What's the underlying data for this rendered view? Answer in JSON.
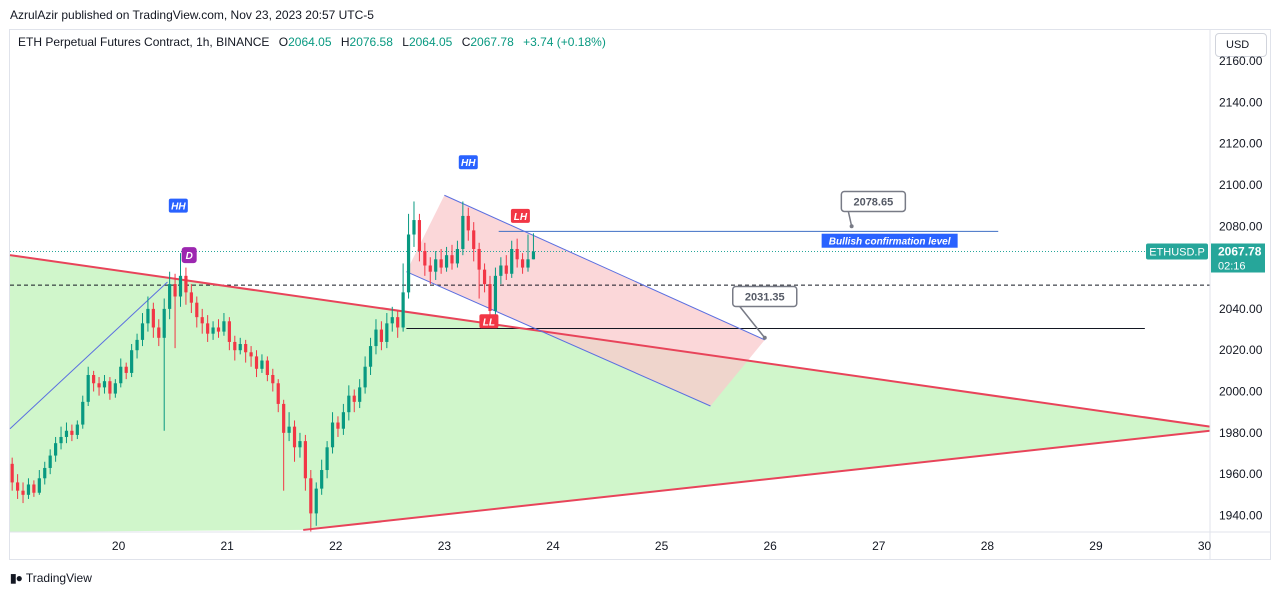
{
  "header": {
    "published_by": "AzrulAzir published on TradingView.com, Nov 23, 2023 20:57 UTC-5"
  },
  "legend": {
    "symbol": "ETH Perpetual Futures Contract, 1h, BINANCE",
    "open_label": "O",
    "open": "2064.05",
    "high_label": "H",
    "high": "2076.58",
    "low_label": "L",
    "low": "2064.05",
    "close_label": "C",
    "close": "2067.78",
    "change": "+3.74 (+0.18%)"
  },
  "toolbar": {
    "currency": "USD"
  },
  "footer": {
    "logo_text": "TradingView"
  },
  "colors": {
    "up": "#089981",
    "down": "#f23645",
    "trend": "#e8445a",
    "channel": "#5b6fe0",
    "triangle_fill": "#c8f5c2",
    "channel_fill": "#f9c9cc",
    "hh_label": "#2962ff",
    "lh_label": "#f23645",
    "d_label": "#9c27b0",
    "price_tag": "#26a69a"
  },
  "chart_data": {
    "type": "candlestick",
    "title": "",
    "ylim": [
      1932,
      2175
    ],
    "y_ticks": [
      1940,
      1960,
      1980,
      2000,
      2020,
      2040,
      2060,
      2080,
      2100,
      2120,
      2140,
      2160
    ],
    "y_tick_labels": [
      "1940.00",
      "1960.00",
      "1980.00",
      "2000.00",
      "2020.00",
      "2040.00",
      "2060.00",
      "2080.00",
      "2100.00",
      "2120.00",
      "2140.00",
      "2160.00"
    ],
    "x_ticks": [
      20,
      21,
      22,
      23,
      24,
      25,
      26,
      27,
      28,
      29,
      30
    ],
    "x_tick_labels": [
      "20",
      "21",
      "22",
      "23",
      "24",
      "25",
      "26",
      "27",
      "28",
      "29",
      "30"
    ],
    "xlim": [
      19.0,
      30.05
    ],
    "current_price": {
      "symbol": "ETHUSD.P",
      "value": "2067.78",
      "countdown": "02:16",
      "y": 2067.78
    },
    "levels": [
      {
        "name": "dashed",
        "y": 2051.5,
        "x": [
          19.0,
          30.05
        ],
        "style": "dashed"
      },
      {
        "name": "bullish-confirmation",
        "y": 2077.5,
        "x": [
          23.5,
          28.1
        ],
        "style": "solid-blue"
      },
      {
        "name": "support",
        "y": 2030.5,
        "x": [
          22.65,
          29.45
        ],
        "style": "solid-black"
      }
    ],
    "trendlines": [
      {
        "name": "triangle-upper",
        "from": [
          19.0,
          2066
        ],
        "to": [
          30.05,
          1983
        ]
      },
      {
        "name": "triangle-lower",
        "from": [
          21.7,
          1933
        ],
        "to": [
          30.05,
          1981
        ]
      },
      {
        "name": "channel-upper",
        "from": [
          23.0,
          2095
        ],
        "to": [
          25.95,
          2025
        ]
      },
      {
        "name": "channel-lower",
        "from": [
          22.65,
          2058
        ],
        "to": [
          25.45,
          1993
        ]
      },
      {
        "name": "rising",
        "from": [
          19.0,
          1982
        ],
        "to": [
          20.45,
          2053
        ]
      }
    ],
    "labels": [
      {
        "name": "hh-1",
        "text": "HH",
        "x": 20.55,
        "y": 2090,
        "kind": "hh"
      },
      {
        "name": "d-1",
        "text": "D",
        "x": 20.65,
        "y": 2066,
        "kind": "d"
      },
      {
        "name": "hh-2",
        "text": "HH",
        "x": 23.22,
        "y": 2111,
        "kind": "hh"
      },
      {
        "name": "lh-1",
        "text": "LH",
        "x": 23.7,
        "y": 2085,
        "kind": "lh"
      },
      {
        "name": "ll-1",
        "text": "LL",
        "x": 23.41,
        "y": 2034,
        "kind": "ll"
      }
    ],
    "annotations": [
      {
        "name": "callout-upper",
        "text": "2078.65",
        "x": 26.95,
        "y": 2092,
        "anchor": [
          26.75,
          2080
        ]
      },
      {
        "name": "callout-lower",
        "text": "2031.35",
        "x": 25.95,
        "y": 2046,
        "anchor": [
          25.95,
          2026
        ]
      },
      {
        "name": "bullish-text",
        "text": "Bullish confirmation level",
        "x": 27.1,
        "y": 2073
      }
    ],
    "candles": [
      [
        19.02,
        1965,
        1956,
        1968,
        1952
      ],
      [
        19.07,
        1956,
        1952,
        1960,
        1948
      ],
      [
        19.12,
        1952,
        1950,
        1956,
        1946
      ],
      [
        19.17,
        1950,
        1955,
        1958,
        1948
      ],
      [
        19.22,
        1955,
        1951,
        1957,
        1949
      ],
      [
        19.27,
        1951,
        1958,
        1962,
        1950
      ],
      [
        19.32,
        1958,
        1963,
        1966,
        1955
      ],
      [
        19.37,
        1963,
        1969,
        1972,
        1960
      ],
      [
        19.42,
        1969,
        1975,
        1978,
        1966
      ],
      [
        19.47,
        1975,
        1978,
        1983,
        1972
      ],
      [
        19.52,
        1978,
        1981,
        1985,
        1975
      ],
      [
        19.57,
        1981,
        1979,
        1984,
        1976
      ],
      [
        19.62,
        1979,
        1984,
        1986,
        1977
      ],
      [
        19.67,
        1984,
        1995,
        1998,
        1982
      ],
      [
        19.72,
        1995,
        2008,
        2012,
        1993
      ],
      [
        19.77,
        2008,
        2004,
        2010,
        2000
      ],
      [
        19.82,
        2004,
        2002,
        2007,
        1998
      ],
      [
        19.87,
        2002,
        2005,
        2008,
        1999
      ],
      [
        19.92,
        2005,
        1999,
        2007,
        1996
      ],
      [
        19.97,
        1999,
        2004,
        2006,
        1997
      ],
      [
        20.02,
        2004,
        2012,
        2016,
        2002
      ],
      [
        20.07,
        2012,
        2009,
        2014,
        2006
      ],
      [
        20.12,
        2009,
        2020,
        2023,
        2007
      ],
      [
        20.17,
        2020,
        2025,
        2028,
        2016
      ],
      [
        20.22,
        2025,
        2033,
        2038,
        2022
      ],
      [
        20.27,
        2033,
        2040,
        2046,
        2029
      ],
      [
        20.32,
        2040,
        2031,
        2043,
        2026
      ],
      [
        20.37,
        2031,
        2026,
        2035,
        2022
      ],
      [
        20.42,
        2026,
        2040,
        2045,
        1981
      ],
      [
        20.47,
        2040,
        2052,
        2058,
        2035
      ],
      [
        20.52,
        2052,
        2046,
        2057,
        2021
      ],
      [
        20.57,
        2046,
        2056,
        2067,
        2041
      ],
      [
        20.62,
        2056,
        2048,
        2060,
        2042
      ],
      [
        20.67,
        2048,
        2043,
        2052,
        2038
      ],
      [
        20.72,
        2043,
        2036,
        2046,
        2031
      ],
      [
        20.77,
        2036,
        2033,
        2040,
        2028
      ],
      [
        20.82,
        2033,
        2028,
        2037,
        2024
      ],
      [
        20.87,
        2028,
        2031,
        2034,
        2025
      ],
      [
        20.92,
        2031,
        2029,
        2035,
        2026
      ],
      [
        20.97,
        2029,
        2034,
        2038,
        2027
      ],
      [
        21.02,
        2034,
        2024,
        2036,
        2020
      ],
      [
        21.07,
        2024,
        2020,
        2027,
        2015
      ],
      [
        21.12,
        2020,
        2023,
        2026,
        2018
      ],
      [
        21.17,
        2023,
        2019,
        2025,
        2014
      ],
      [
        21.22,
        2019,
        2017,
        2022,
        2012
      ],
      [
        21.27,
        2017,
        2011,
        2020,
        2007
      ],
      [
        21.32,
        2011,
        2015,
        2018,
        2009
      ],
      [
        21.37,
        2015,
        2008,
        2017,
        2005
      ],
      [
        21.42,
        2008,
        2004,
        2011,
        2000
      ],
      [
        21.47,
        2004,
        1994,
        2006,
        1990
      ],
      [
        21.52,
        1994,
        1980,
        1996,
        1952
      ],
      [
        21.57,
        1980,
        1983,
        1990,
        1976
      ],
      [
        21.62,
        1983,
        1973,
        1986,
        1966
      ],
      [
        21.67,
        1973,
        1976,
        1980,
        1968
      ],
      [
        21.72,
        1976,
        1958,
        1979,
        1952
      ],
      [
        21.77,
        1958,
        1941,
        1962,
        1932
      ],
      [
        21.82,
        1941,
        1953,
        1956,
        1935
      ],
      [
        21.87,
        1953,
        1962,
        1967,
        1950
      ],
      [
        21.92,
        1962,
        1973,
        1976,
        1958
      ],
      [
        21.97,
        1973,
        1985,
        1990,
        1970
      ],
      [
        22.02,
        1985,
        1982,
        1988,
        1978
      ],
      [
        22.07,
        1982,
        1990,
        1994,
        1979
      ],
      [
        22.12,
        1990,
        1998,
        2003,
        1986
      ],
      [
        22.17,
        1998,
        1995,
        2001,
        1990
      ],
      [
        22.22,
        1995,
        2002,
        2006,
        1992
      ],
      [
        22.27,
        2002,
        2012,
        2017,
        1999
      ],
      [
        22.32,
        2012,
        2022,
        2026,
        2008
      ],
      [
        22.37,
        2022,
        2030,
        2035,
        2018
      ],
      [
        22.42,
        2030,
        2024,
        2034,
        2020
      ],
      [
        22.47,
        2024,
        2033,
        2038,
        2021
      ],
      [
        22.52,
        2033,
        2036,
        2041,
        2029
      ],
      [
        22.57,
        2036,
        2031,
        2039,
        2026
      ],
      [
        22.62,
        2031,
        2048,
        2062,
        2029
      ],
      [
        22.67,
        2048,
        2076,
        2086,
        2045
      ],
      [
        22.72,
        2076,
        2083,
        2092,
        2070
      ],
      [
        22.77,
        2083,
        2068,
        2086,
        2063
      ],
      [
        22.82,
        2068,
        2061,
        2072,
        2056
      ],
      [
        22.87,
        2061,
        2058,
        2065,
        2052
      ],
      [
        22.92,
        2058,
        2064,
        2068,
        2054
      ],
      [
        22.97,
        2064,
        2060,
        2069,
        2057
      ],
      [
        23.02,
        2060,
        2066,
        2070,
        2058
      ],
      [
        23.07,
        2066,
        2062,
        2071,
        2059
      ],
      [
        23.12,
        2062,
        2069,
        2073,
        2060
      ],
      [
        23.17,
        2069,
        2085,
        2092,
        2066
      ],
      [
        23.22,
        2085,
        2078,
        2089,
        2073
      ],
      [
        23.27,
        2078,
        2069,
        2082,
        2063
      ],
      [
        23.32,
        2069,
        2059,
        2072,
        2045
      ],
      [
        23.37,
        2059,
        2052,
        2062,
        2048
      ],
      [
        23.42,
        2052,
        2039,
        2056,
        2033
      ],
      [
        23.47,
        2039,
        2056,
        2060,
        2036
      ],
      [
        23.52,
        2056,
        2061,
        2065,
        2052
      ],
      [
        23.57,
        2061,
        2057,
        2066,
        2054
      ],
      [
        23.62,
        2057,
        2069,
        2073,
        2055
      ],
      [
        23.67,
        2069,
        2064,
        2074,
        2060
      ],
      [
        23.72,
        2064,
        2060,
        2067,
        2057
      ],
      [
        23.77,
        2060,
        2064,
        2076,
        2058
      ],
      [
        23.82,
        2064,
        2067.78,
        2076.58,
        2064
      ]
    ]
  }
}
